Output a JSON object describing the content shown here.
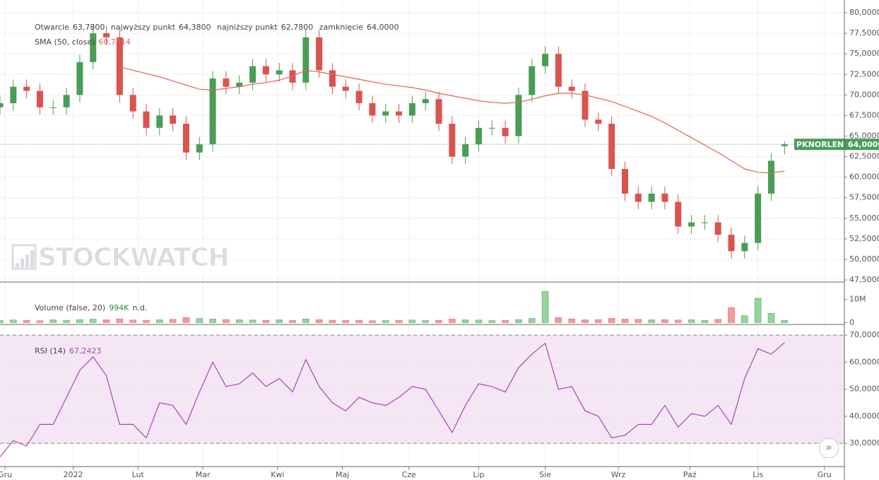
{
  "chart_data": {
    "type": "candlestick",
    "symbol": "PKNORLEN",
    "watermark": "STOCKWATCH",
    "x": [
      0,
      4,
      8,
      12,
      16,
      20,
      24,
      28,
      32,
      36,
      40,
      44,
      48,
      52,
      56,
      60,
      64,
      68,
      72,
      76,
      80,
      84,
      88,
      92,
      96,
      100,
      104,
      108,
      112,
      116,
      120,
      124,
      128,
      132,
      136,
      140,
      144,
      148,
      152,
      156,
      160,
      164,
      168,
      172,
      176,
      180,
      184,
      188,
      192,
      196,
      200,
      204,
      208,
      212,
      216,
      220,
      224,
      228,
      232,
      236
    ],
    "xlim": [
      0,
      254
    ],
    "xticks": [
      {
        "value": 1.5,
        "label": "Gru"
      },
      {
        "value": 22,
        "label": "2022"
      },
      {
        "value": 41.5,
        "label": "Lut"
      },
      {
        "value": 61,
        "label": "Mar"
      },
      {
        "value": 83.5,
        "label": "Kwi"
      },
      {
        "value": 103,
        "label": "Maj"
      },
      {
        "value": 123,
        "label": "Cze"
      },
      {
        "value": 144,
        "label": "Lip"
      },
      {
        "value": 164,
        "label": "Sie"
      },
      {
        "value": 186,
        "label": "Wrz"
      },
      {
        "value": 207.5,
        "label": "Paź"
      },
      {
        "value": 228,
        "label": "Lis"
      },
      {
        "value": 248,
        "label": "Gru"
      }
    ],
    "ylim": [
      47.33,
      81.55
    ],
    "yticks": [
      {
        "value": 47.5,
        "label": "47,5000"
      },
      {
        "value": 50,
        "label": "50,0000"
      },
      {
        "value": 52.5,
        "label": "52,5000"
      },
      {
        "value": 55,
        "label": "55,0000"
      },
      {
        "value": 57.5,
        "label": "57,5000"
      },
      {
        "value": 60,
        "label": "60,0000"
      },
      {
        "value": 62.5,
        "label": "62,5000"
      },
      {
        "value": 65,
        "label": "65,0000"
      },
      {
        "value": 67.5,
        "label": "67,5000"
      },
      {
        "value": 70,
        "label": "70,0000"
      },
      {
        "value": 72.5,
        "label": "72,5000"
      },
      {
        "value": 75,
        "label": "75,0000"
      },
      {
        "value": 77.5,
        "label": "77,5000"
      },
      {
        "value": 80,
        "label": "80,0000"
      }
    ],
    "grid": true,
    "up_color": "#4a9d55",
    "down_color": "#d9534f",
    "open": [
      68.5,
      69,
      71,
      70.5,
      68.5,
      68.5,
      70,
      74,
      77.5,
      77,
      70,
      68,
      66,
      67.5,
      66.5,
      63,
      64,
      72,
      71,
      71.5,
      73.5,
      72.5,
      73,
      71.5,
      77,
      73,
      71,
      70.5,
      69,
      67.5,
      68,
      67.5,
      69,
      69.5,
      66.5,
      62.5,
      64,
      66,
      66,
      65,
      70,
      73.5,
      75,
      71,
      70.5,
      67,
      66.5,
      61,
      58,
      57,
      58,
      57,
      54,
      54.5,
      54.5,
      53,
      51,
      52,
      58,
      63.78
    ],
    "high": [
      69.9,
      71.9,
      71.9,
      71.4,
      69.4,
      70.9,
      74.9,
      78.4,
      78.4,
      77.9,
      70.9,
      68.9,
      68.4,
      68.4,
      67.4,
      64.9,
      72.9,
      72.9,
      72.4,
      74.4,
      74.4,
      73.9,
      73.9,
      77.9,
      77.9,
      73.9,
      71.9,
      71.4,
      69.9,
      68.9,
      68.9,
      69.9,
      70.4,
      70.4,
      67.4,
      64.9,
      66.9,
      66.9,
      66.9,
      70.9,
      74.4,
      75.9,
      75.9,
      71.9,
      71.4,
      67.9,
      67.4,
      61.9,
      58.9,
      58.9,
      58.9,
      57.9,
      55.4,
      55.4,
      55.4,
      53.9,
      52.9,
      58.9,
      62.9,
      64.38
    ],
    "low": [
      67.6,
      68.1,
      69.6,
      67.6,
      67.6,
      67.6,
      69.1,
      73.1,
      76.1,
      69.1,
      67.1,
      65.1,
      65.1,
      65.6,
      62.1,
      62.1,
      63.1,
      70.1,
      70.1,
      70.6,
      71.6,
      71.6,
      70.6,
      70.6,
      72.1,
      70.1,
      69.6,
      68.1,
      66.6,
      66.6,
      66.6,
      66.6,
      68.1,
      65.6,
      61.6,
      61.6,
      63.1,
      65.1,
      64.1,
      64.1,
      69.1,
      72.6,
      70.1,
      69.6,
      66.1,
      65.6,
      60.1,
      57.1,
      56.1,
      56.1,
      56.1,
      53.1,
      53.1,
      53.6,
      52.1,
      50.1,
      50.1,
      51.1,
      57.1,
      62.78
    ],
    "close": [
      69,
      71,
      70.5,
      68.5,
      68.5,
      70,
      74,
      77.5,
      77,
      70,
      68,
      66,
      67.5,
      66.5,
      63,
      64,
      72,
      71,
      71.5,
      73.5,
      72.5,
      73,
      71.5,
      77,
      73,
      71,
      70.5,
      69,
      67.5,
      68,
      67.5,
      69,
      69.5,
      66.5,
      62.5,
      64,
      66,
      66,
      65,
      70,
      73.5,
      75,
      71,
      70.5,
      67,
      66.5,
      61,
      58,
      57,
      58,
      57,
      54,
      54.5,
      54.5,
      53,
      51,
      52,
      58,
      62,
      64
    ],
    "ohlc_labels": [
      "Otwarcie",
      "najwyższy punkt",
      "najniższy punkt",
      "zamknięcie"
    ],
    "last_labels": [
      "63,7800",
      "64,3800",
      "62,7800",
      "64,0000"
    ],
    "overlays": [
      {
        "name": "SMA (50, close)",
        "color": "#e8605a",
        "value_label": "60,7514",
        "values": [
          null,
          null,
          null,
          null,
          null,
          null,
          null,
          null,
          null,
          73.4,
          73,
          72.6,
          72.2,
          71.7,
          71.2,
          70.7,
          70.6,
          70.8,
          71,
          71.3,
          71.5,
          71.8,
          72.3,
          73,
          72.8,
          72.5,
          72.2,
          71.9,
          71.6,
          71.3,
          71.1,
          70.9,
          70.6,
          70.2,
          69.9,
          69.6,
          69.3,
          69.1,
          69,
          69.1,
          69.5,
          69.9,
          70.2,
          70.2,
          70,
          69.6,
          69.2,
          68.6,
          68,
          67.4,
          66.6,
          65.7,
          64.8,
          63.9,
          63,
          62,
          61,
          60.6,
          60.5,
          60.7514
        ]
      }
    ],
    "volume": {
      "name": "Volume (false, 20)",
      "value_label": "994K",
      "unit_label": "n.d.",
      "up_color": "#95d49a",
      "down_color": "#f49a9a",
      "label_color": "#2e8b3a",
      "ylim": [
        -0.5,
        17.2
      ],
      "yticks": [
        0,
        {
          "value": 10,
          "label": "10M"
        }
      ],
      "values": [
        0.9,
        1.1,
        1.0,
        0.8,
        1.2,
        1.0,
        1.3,
        1.5,
        1.2,
        1.6,
        1.1,
        1.0,
        1.2,
        1.4,
        2.2,
        1.8,
        1.5,
        1.3,
        1.2,
        1.1,
        1.0,
        1.2,
        0.9,
        1.6,
        1.3,
        1.0,
        0.9,
        1.0,
        0.8,
        0.9,
        1.0,
        1.1,
        0.9,
        1.0,
        1.5,
        1.2,
        1.1,
        0.9,
        1.0,
        1.3,
        1.8,
        13.5,
        2.2,
        1.6,
        1.2,
        1.3,
        1.8,
        1.5,
        1.4,
        1.2,
        1.3,
        1.1,
        1.2,
        1.0,
        1.4,
        6.5,
        3.0,
        10.5,
        4.0,
        0.994
      ]
    },
    "rsi": {
      "name": "RSI (14)",
      "value_label": "67,2423",
      "color": "#a748b8",
      "band_color": "#f4e6f4",
      "bands": [
        30,
        70
      ],
      "ylim": [
        21.4,
        73.7
      ],
      "yticks": [
        {
          "value": 30,
          "label": "30,0000"
        },
        {
          "value": 40,
          "label": "40,0000"
        },
        {
          "value": 50,
          "label": "50,0000"
        },
        {
          "value": 60,
          "label": "60,0000"
        },
        {
          "value": 70,
          "label": "70,0000"
        }
      ],
      "values": [
        25,
        31,
        29,
        37,
        37,
        47,
        57,
        62,
        55,
        37,
        37,
        32,
        45,
        44,
        37,
        49,
        60,
        51,
        52,
        56,
        51,
        54,
        49,
        61,
        51,
        45,
        42,
        47,
        45,
        44,
        47,
        51,
        50,
        42,
        34,
        44,
        52,
        51,
        49,
        58,
        63,
        67,
        50,
        51,
        42,
        40,
        32,
        33,
        37,
        37,
        44,
        36,
        41,
        40,
        44,
        37,
        54,
        65,
        63,
        67.2423
      ]
    }
  }
}
